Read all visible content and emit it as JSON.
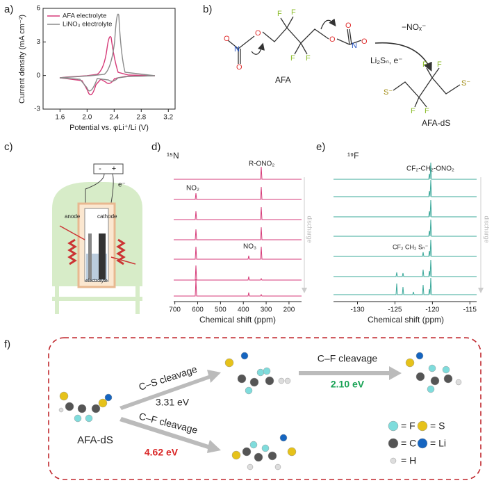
{
  "panel_labels": [
    "a)",
    "b)",
    "c)",
    "d)",
    "e)",
    "f)"
  ],
  "panel_a": {
    "type": "line",
    "y_label": "Current density (mA cm⁻²)",
    "x_label": "Potential vs. φLi⁺/Li (V)",
    "series": [
      {
        "name": "AFA electrolyte",
        "color": "#d63a78"
      },
      {
        "name": "LiNO₃ electrolyte",
        "color": "#8a8a8a"
      }
    ],
    "xlim": [
      1.35,
      3.3
    ],
    "xticks": [
      1.6,
      {
        "value": 2,
        "label": "2.0"
      },
      2.4,
      2.8,
      3.2
    ],
    "ylim": [
      -3,
      6
    ],
    "yticks": [
      -3,
      0,
      3,
      6
    ]
  },
  "panel_b": {
    "reactant": "AFA",
    "product": "AFA-dS",
    "leaving": "−NOₓ⁻",
    "reagent": "Li₂Sₙ, e⁻",
    "fluorine": "F",
    "sulfur": "S⁻",
    "oxygen": "O",
    "nitrogen": "N"
  },
  "panel_c": {
    "minus": "-",
    "plus": "+",
    "electron": "e⁻",
    "anode": "anode",
    "cathode": "cathode",
    "electrolyte": "electrolyte"
  },
  "panel_d": {
    "nucleus": "¹⁵N",
    "peak_labels": [
      "R-ONO₂",
      "NO₂",
      "NO₃"
    ],
    "arrow_label": "discharge",
    "x_label": "Chemical shift (ppm)",
    "color": "#d63a78",
    "xlim": [
      705,
      145
    ],
    "xticks": [
      700,
      600,
      500,
      400,
      300,
      200
    ]
  },
  "panel_e": {
    "nucleus": "¹⁹F",
    "peak_labels": [
      "CF₂-CH₂-ONO₂",
      "CF₂ CH₂ Sₙ⁻"
    ],
    "arrow_label": "discharge",
    "x_label": "Chemical shift (ppm)",
    "color": "#3aa89a",
    "xlim": [
      -133.2,
      -114.1
    ],
    "xticks": [
      -130,
      -125,
      -120,
      -115
    ]
  },
  "panel_f": {
    "start": "AFA-dS",
    "paths": [
      {
        "label": "C–S cleavage",
        "energy": "3.31 eV"
      },
      {
        "label": "C–F cleavage",
        "energy": "2.10 eV"
      },
      {
        "label": "C–F cleavage",
        "energy": "4.62 eV"
      }
    ],
    "legend": [
      "= F",
      "= S",
      "= C",
      "= Li",
      "= H"
    ]
  }
}
